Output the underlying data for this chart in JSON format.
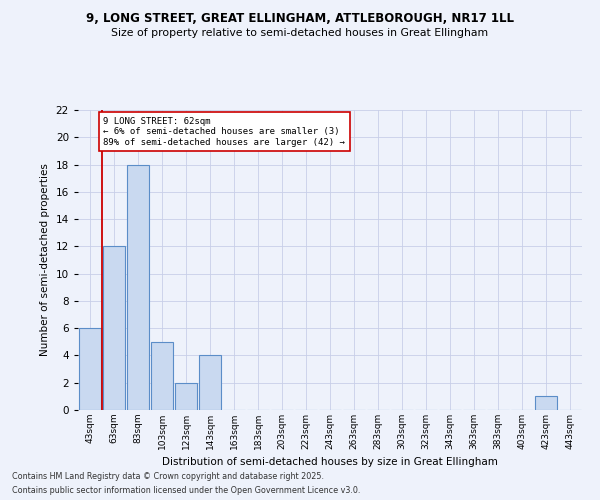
{
  "title1": "9, LONG STREET, GREAT ELLINGHAM, ATTLEBOROUGH, NR17 1LL",
  "title2": "Size of property relative to semi-detached houses in Great Ellingham",
  "xlabel": "Distribution of semi-detached houses by size in Great Ellingham",
  "ylabel": "Number of semi-detached properties",
  "bins": [
    "43sqm",
    "63sqm",
    "83sqm",
    "103sqm",
    "123sqm",
    "143sqm",
    "163sqm",
    "183sqm",
    "203sqm",
    "223sqm",
    "243sqm",
    "263sqm",
    "283sqm",
    "303sqm",
    "323sqm",
    "343sqm",
    "363sqm",
    "383sqm",
    "403sqm",
    "423sqm",
    "443sqm"
  ],
  "values": [
    6,
    12,
    18,
    5,
    2,
    4,
    0,
    0,
    0,
    0,
    0,
    0,
    0,
    0,
    0,
    0,
    0,
    0,
    0,
    1,
    0
  ],
  "bar_color": "#c9d9f0",
  "bar_edge_color": "#5b8dc8",
  "highlight_line_color": "#cc0000",
  "annotation_title": "9 LONG STREET: 62sqm",
  "annotation_line1": "← 6% of semi-detached houses are smaller (3)",
  "annotation_line2": "89% of semi-detached houses are larger (42) →",
  "annotation_box_color": "#ffffff",
  "annotation_box_edge": "#cc0000",
  "ylim": [
    0,
    22
  ],
  "yticks": [
    0,
    2,
    4,
    6,
    8,
    10,
    12,
    14,
    16,
    18,
    20,
    22
  ],
  "footer1": "Contains HM Land Registry data © Crown copyright and database right 2025.",
  "footer2": "Contains public sector information licensed under the Open Government Licence v3.0.",
  "bg_color": "#eef2fb",
  "grid_color": "#c8cfe8"
}
